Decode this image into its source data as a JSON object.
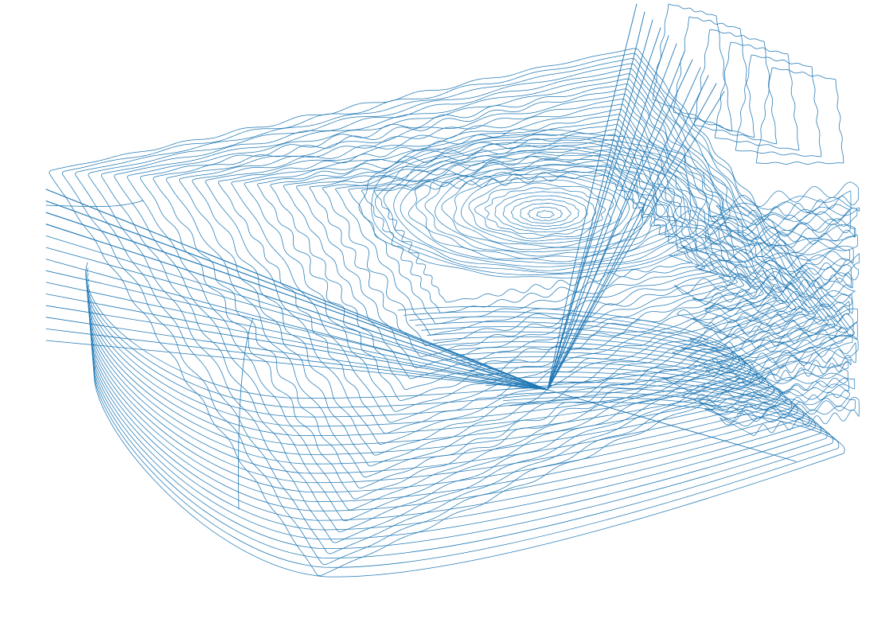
{
  "figure": {
    "kind": "single-stroke line drawing (contour plot of a 3D surface)",
    "stroke_color": "#1f77b4",
    "background_color": "#ffffff",
    "groups": [
      {
        "name": "outer-contour-loops",
        "count": 26
      },
      {
        "name": "inner-contour-rings",
        "count": 22
      },
      {
        "name": "right-scribble-contours",
        "count": 32
      },
      {
        "name": "left-ray-bundle",
        "count": 14
      },
      {
        "name": "upper-ray-bundle",
        "count": 12
      },
      {
        "name": "upper-right-loops",
        "count": 6
      }
    ]
  }
}
